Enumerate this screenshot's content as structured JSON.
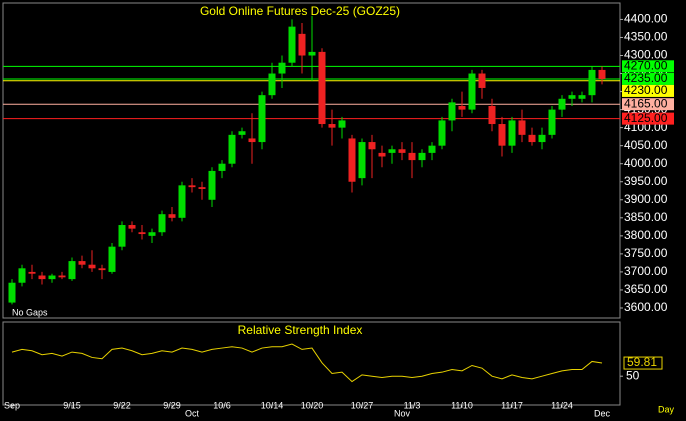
{
  "chart_data": [
    {
      "type": "candlestick",
      "title": "Gold Online Futures Dec-25 (GOZ25)",
      "note": "No Gaps",
      "categories": [
        "Sep",
        null,
        null,
        null,
        null,
        null,
        "9/15",
        null,
        null,
        null,
        null,
        "9/22",
        null,
        null,
        null,
        null,
        "9/29",
        null,
        null,
        null,
        null,
        "10/6",
        null,
        null,
        null,
        null,
        "10/14",
        null,
        null,
        null,
        "10/20",
        null,
        null,
        null,
        null,
        "10/27",
        null,
        null,
        null,
        null,
        "11/3",
        null,
        null,
        null,
        null,
        "11/10",
        null,
        null,
        null,
        null,
        "11/17",
        null,
        null,
        null,
        null,
        "11/24",
        null,
        null,
        null,
        null
      ],
      "months": [
        null,
        null,
        null,
        null,
        null,
        null,
        null,
        null,
        null,
        null,
        null,
        null,
        null,
        null,
        null,
        null,
        null,
        null,
        "Oct",
        null,
        null,
        null,
        null,
        null,
        null,
        null,
        null,
        null,
        null,
        null,
        null,
        null,
        null,
        null,
        null,
        null,
        null,
        null,
        null,
        "Nov",
        null,
        null,
        null,
        null,
        null,
        null,
        null,
        null,
        null,
        null,
        null,
        null,
        null,
        null,
        null,
        null,
        null,
        null,
        null,
        "Dec"
      ],
      "open": [
        3615,
        3670,
        3700,
        3690,
        3680,
        3690,
        3680,
        3730,
        3720,
        3710,
        3700,
        3770,
        3830,
        3810,
        3800,
        3810,
        3860,
        3850,
        3940,
        3935,
        3900,
        3980,
        4000,
        4080,
        4070,
        4060,
        4190,
        4250,
        4280,
        4360,
        4300,
        4310,
        4110,
        4100,
        4070,
        3960,
        4060,
        4030,
        4030,
        4040,
        4030,
        4010,
        4030,
        4050,
        4120,
        4160,
        4150,
        4250,
        4160,
        4110,
        4050,
        4120,
        4080,
        4060,
        4080,
        4150,
        4180,
        4180,
        4190,
        4260
      ],
      "high": [
        3680,
        3720,
        3720,
        3700,
        3695,
        3700,
        3740,
        3745,
        3760,
        3720,
        3780,
        3840,
        3840,
        3830,
        3820,
        3870,
        3880,
        3950,
        3960,
        3950,
        3990,
        4010,
        4090,
        4100,
        4140,
        4200,
        4280,
        4300,
        4400,
        4390,
        4410,
        4320,
        4150,
        4130,
        4080,
        4070,
        4080,
        4050,
        4050,
        4060,
        4060,
        4040,
        4060,
        4130,
        4180,
        4200,
        4260,
        4260,
        4180,
        4130,
        4130,
        4150,
        4100,
        4100,
        4160,
        4190,
        4200,
        4200,
        4270,
        4270
      ],
      "low": [
        3610,
        3660,
        3680,
        3665,
        3670,
        3680,
        3675,
        3710,
        3700,
        3680,
        3695,
        3760,
        3810,
        3790,
        3780,
        3800,
        3840,
        3840,
        3920,
        3900,
        3880,
        3960,
        3990,
        4070,
        4000,
        4040,
        4180,
        4210,
        4270,
        4250,
        4230,
        4100,
        4050,
        4070,
        3920,
        3940,
        3960,
        3990,
        4000,
        4010,
        3960,
        3990,
        4010,
        4040,
        4090,
        4130,
        4140,
        4180,
        4090,
        4020,
        4030,
        4060,
        4050,
        4040,
        4070,
        4130,
        4160,
        4170,
        4170,
        4220
      ],
      "close": [
        3670,
        3710,
        3695,
        3680,
        3690,
        3685,
        3730,
        3720,
        3710,
        3705,
        3770,
        3830,
        3820,
        3805,
        3810,
        3860,
        3850,
        3940,
        3935,
        3930,
        3980,
        4000,
        4080,
        4090,
        4060,
        4190,
        4250,
        4280,
        4380,
        4300,
        4310,
        4110,
        4100,
        4120,
        3950,
        4060,
        4040,
        4020,
        4040,
        4030,
        4010,
        4030,
        4050,
        4120,
        4170,
        4150,
        4250,
        4210,
        4110,
        4050,
        4120,
        4080,
        4060,
        4080,
        4150,
        4180,
        4190,
        4190,
        4260,
        4235
      ],
      "up_color": "#00dd00",
      "down_color": "#ee2222",
      "ylim": [
        3575,
        4440
      ],
      "yticks": [
        {
          "value": 3600,
          "label": "3600.00"
        },
        {
          "value": 3650,
          "label": "3650.00"
        },
        {
          "value": 3700,
          "label": "3700.00"
        },
        {
          "value": 3750,
          "label": "3750.00"
        },
        {
          "value": 3800,
          "label": "3800.00"
        },
        {
          "value": 3850,
          "label": "3850.00"
        },
        {
          "value": 3900,
          "label": "3900.00"
        },
        {
          "value": 3950,
          "label": "3950.00"
        },
        {
          "value": 4000,
          "label": "4000.00"
        },
        {
          "value": 4050,
          "label": "4050.00"
        },
        {
          "value": 4100,
          "label": "4100.00"
        },
        {
          "value": 4150,
          "label": "4150.00"
        },
        {
          "value": 4200,
          "label": "4200.00"
        },
        {
          "value": 4250,
          "label": "4250.00"
        },
        {
          "value": 4300,
          "label": "4300.00"
        },
        {
          "value": 4350,
          "label": "4350.00"
        },
        {
          "value": 4400,
          "label": "4400.00"
        }
      ],
      "levels": [
        {
          "value": 4270,
          "label": "4270.00",
          "color": "#00ff00"
        },
        {
          "value": 4235,
          "label": "4235.00",
          "color": "#00ff00"
        },
        {
          "value": 4230,
          "label": "4230.00",
          "color": "#ffff00"
        },
        {
          "value": 4165,
          "label": "4165.00",
          "color": "#ffb0a0"
        },
        {
          "value": 4125,
          "label": "4125.00",
          "color": "#ff2020"
        }
      ],
      "xlabel": "Day"
    },
    {
      "type": "line",
      "title": "Relative Strength Index",
      "color": "#e8d200",
      "values": [
        68,
        70,
        69,
        66,
        67,
        65,
        68,
        67,
        64,
        63,
        70,
        71,
        69,
        66,
        67,
        69,
        68,
        71,
        70,
        68,
        70,
        71,
        72,
        71,
        68,
        71,
        72,
        72,
        74,
        70,
        71,
        60,
        52,
        53,
        46,
        51,
        50,
        49,
        50,
        50,
        49,
        50,
        52,
        53,
        55,
        54,
        58,
        56,
        50,
        48,
        51,
        49,
        48,
        50,
        52,
        54,
        55,
        55,
        61,
        59.81
      ],
      "value_label": "59.81",
      "ylim": [
        30,
        80
      ],
      "yticks": [
        50
      ]
    }
  ]
}
